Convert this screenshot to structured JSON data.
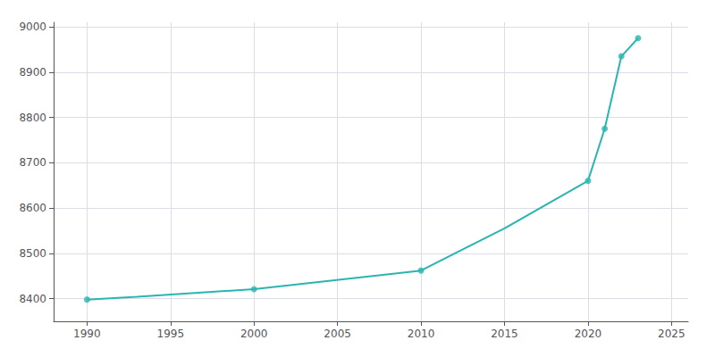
{
  "chart_data": {
    "type": "line",
    "x": [
      1990,
      1993,
      2000,
      2010,
      2015,
      2020,
      2021,
      2022,
      2023
    ],
    "series": [
      {
        "type": "line",
        "color": "#2ab5b0",
        "values": [
          8398,
          8404,
          8421,
          8462,
          8555,
          8660,
          8775,
          8935,
          8975
        ]
      },
      {
        "type": "scatter",
        "marker": "circle",
        "color": "#2ab5b0",
        "values": [
          8398,
          null,
          8421,
          8462,
          null,
          8660,
          8775,
          8935,
          8975
        ]
      }
    ],
    "xlim": [
      1988,
      2026
    ],
    "xticks": [
      1990,
      1995,
      2000,
      2005,
      2010,
      2015,
      2020,
      2025
    ],
    "ylim": [
      8350,
      9010
    ],
    "yticks": [
      8400,
      8500,
      8600,
      8700,
      8800,
      8900,
      9000
    ],
    "grid": true
  }
}
